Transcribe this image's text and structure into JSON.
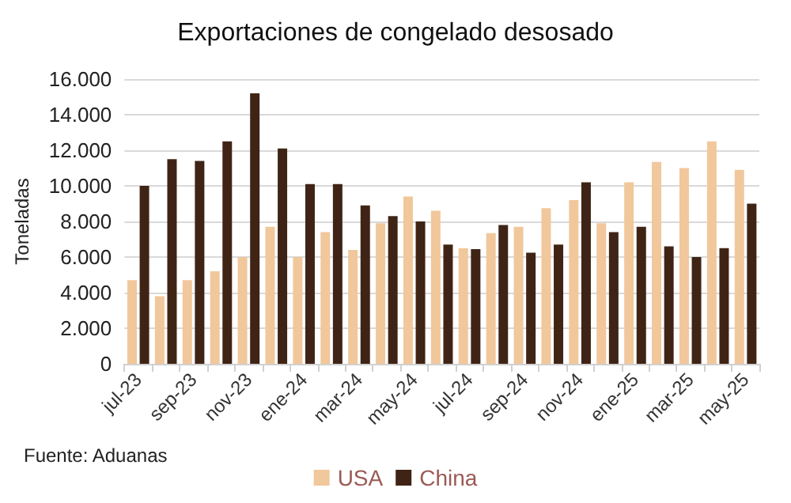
{
  "chart_data": {
    "type": "bar",
    "title": "Exportaciones de congelado desosado",
    "ylabel": "Toneladas",
    "categories": [
      "jul-23",
      null,
      "sep-23",
      null,
      "nov-23",
      null,
      "ene-24",
      null,
      "mar-24",
      null,
      "may-24",
      null,
      "jul-24",
      null,
      "sep-24",
      null,
      "nov-24",
      null,
      "ene-25",
      null,
      "mar-25",
      null,
      "may-25"
    ],
    "series": [
      {
        "name": "USA",
        "color": "#f1c79c",
        "values": [
          4700,
          3800,
          4700,
          5200,
          6000,
          7700,
          6000,
          7400,
          6400,
          7900,
          9400,
          8600,
          6500,
          7350,
          7700,
          8750,
          9200,
          7900,
          10200,
          11350,
          11000,
          12500,
          10900
        ]
      },
      {
        "name": "China",
        "color": "#3f2416",
        "values": [
          10000,
          11500,
          11400,
          12500,
          15200,
          12100,
          10100,
          10100,
          8900,
          8300,
          8000,
          6700,
          6450,
          7800,
          6250,
          6700,
          10200,
          7400,
          7700,
          6600,
          6000,
          6500,
          9000
        ]
      }
    ],
    "ylim": [
      0,
      16000
    ],
    "yticks": [
      {
        "value": 0,
        "label": "0"
      },
      {
        "value": 2000,
        "label": "2.000"
      },
      {
        "value": 4000,
        "label": "4.000"
      },
      {
        "value": 6000,
        "label": "6.000"
      },
      {
        "value": 8000,
        "label": "8.000"
      },
      {
        "value": 10000,
        "label": "10.000"
      },
      {
        "value": 12000,
        "label": "12.000"
      },
      {
        "value": 14000,
        "label": "14.000"
      },
      {
        "value": 16000,
        "label": "16.000"
      }
    ],
    "grid": "y",
    "legend": "bottom",
    "annotations": [
      "Fuente: Aduanas"
    ]
  }
}
